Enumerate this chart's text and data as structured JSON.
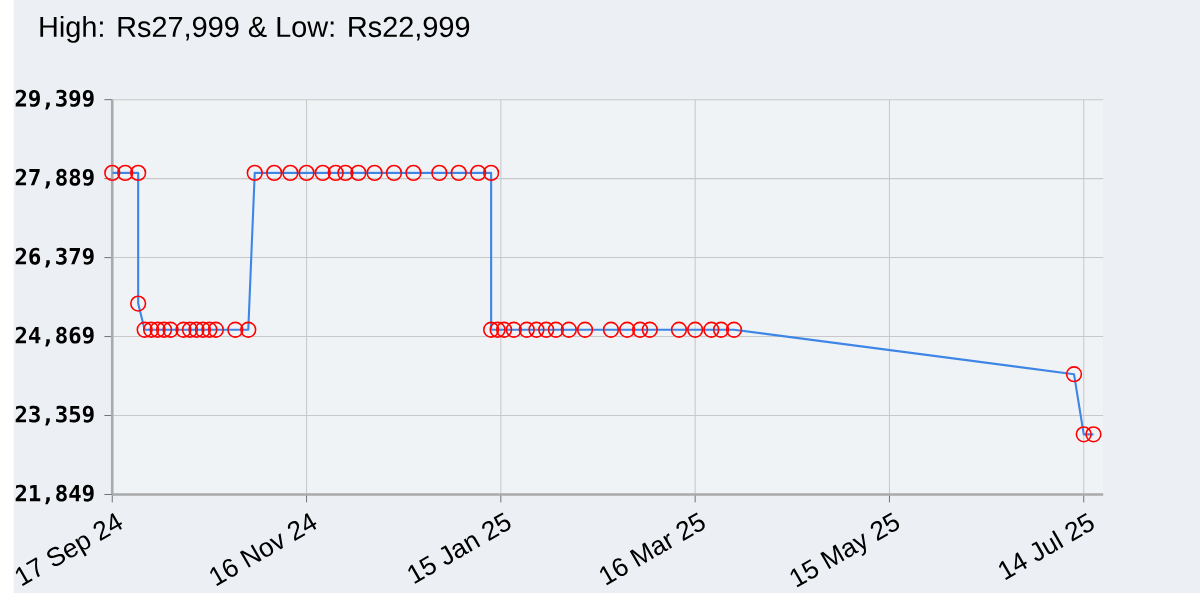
{
  "chart_data": {
    "type": "line",
    "title": "High: Rs27,999 & Low: Rs22,999",
    "x": [
      "2024-09-17",
      "2024-09-21",
      "2024-09-25",
      "2024-09-25",
      "2024-09-27",
      "2024-09-29",
      "2024-10-01",
      "2024-10-03",
      "2024-10-05",
      "2024-10-09",
      "2024-10-11",
      "2024-10-13",
      "2024-10-15",
      "2024-10-17",
      "2024-10-19",
      "2024-10-25",
      "2024-10-29",
      "2024-10-31",
      "2024-11-06",
      "2024-11-11",
      "2024-11-16",
      "2024-11-21",
      "2024-11-25",
      "2024-11-28",
      "2024-12-02",
      "2024-12-07",
      "2024-12-13",
      "2024-12-19",
      "2024-12-27",
      "2025-01-02",
      "2025-01-08",
      "2025-01-12",
      "2025-01-12",
      "2025-01-14",
      "2025-01-16",
      "2025-01-19",
      "2025-01-23",
      "2025-01-26",
      "2025-01-29",
      "2025-02-01",
      "2025-02-05",
      "2025-02-10",
      "2025-02-18",
      "2025-02-23",
      "2025-02-27",
      "2025-03-02",
      "2025-03-11",
      "2025-03-16",
      "2025-03-21",
      "2025-03-24",
      "2025-03-28",
      "2025-07-11",
      "2025-07-14",
      "2025-07-17"
    ],
    "values": [
      27999,
      27999,
      27999,
      25499,
      24999,
      24999,
      24999,
      24999,
      24999,
      24999,
      24999,
      24999,
      24999,
      24999,
      24999,
      24999,
      24999,
      27999,
      27999,
      27999,
      27999,
      27999,
      27999,
      27999,
      27999,
      27999,
      27999,
      27999,
      27999,
      27999,
      27999,
      27999,
      24999,
      24999,
      24999,
      24999,
      24999,
      24999,
      24999,
      24999,
      24999,
      24999,
      24999,
      24999,
      24999,
      24999,
      24999,
      24999,
      24999,
      24999,
      24999,
      24149,
      22999,
      22999
    ],
    "color": "#3d85e6",
    "marker": "circle",
    "line_style": "solid",
    "grid": true,
    "xlim": [
      "2024-09-17",
      "2025-07-20"
    ],
    "ylim": [
      21849,
      29399
    ],
    "xticks": [
      {
        "value": "2024-09-17",
        "label": "17 Sep 24"
      },
      {
        "value": "2024-11-16",
        "label": "16 Nov 24"
      },
      {
        "value": "2025-01-15",
        "label": "15 Jan 25"
      },
      {
        "value": "2025-03-16",
        "label": "16 Mar 25"
      },
      {
        "value": "2025-05-15",
        "label": "15 May 25"
      },
      {
        "value": "2025-07-14",
        "label": "14 Jul 25"
      }
    ],
    "yticks": [
      {
        "value": 21849,
        "label": "21,849"
      },
      {
        "value": 23359,
        "label": "23,359"
      },
      {
        "value": 24869,
        "label": "24,869"
      },
      {
        "value": 26379,
        "label": "26,379"
      },
      {
        "value": 27889,
        "label": "27,889"
      },
      {
        "value": 29399,
        "label": "29,399"
      }
    ]
  }
}
